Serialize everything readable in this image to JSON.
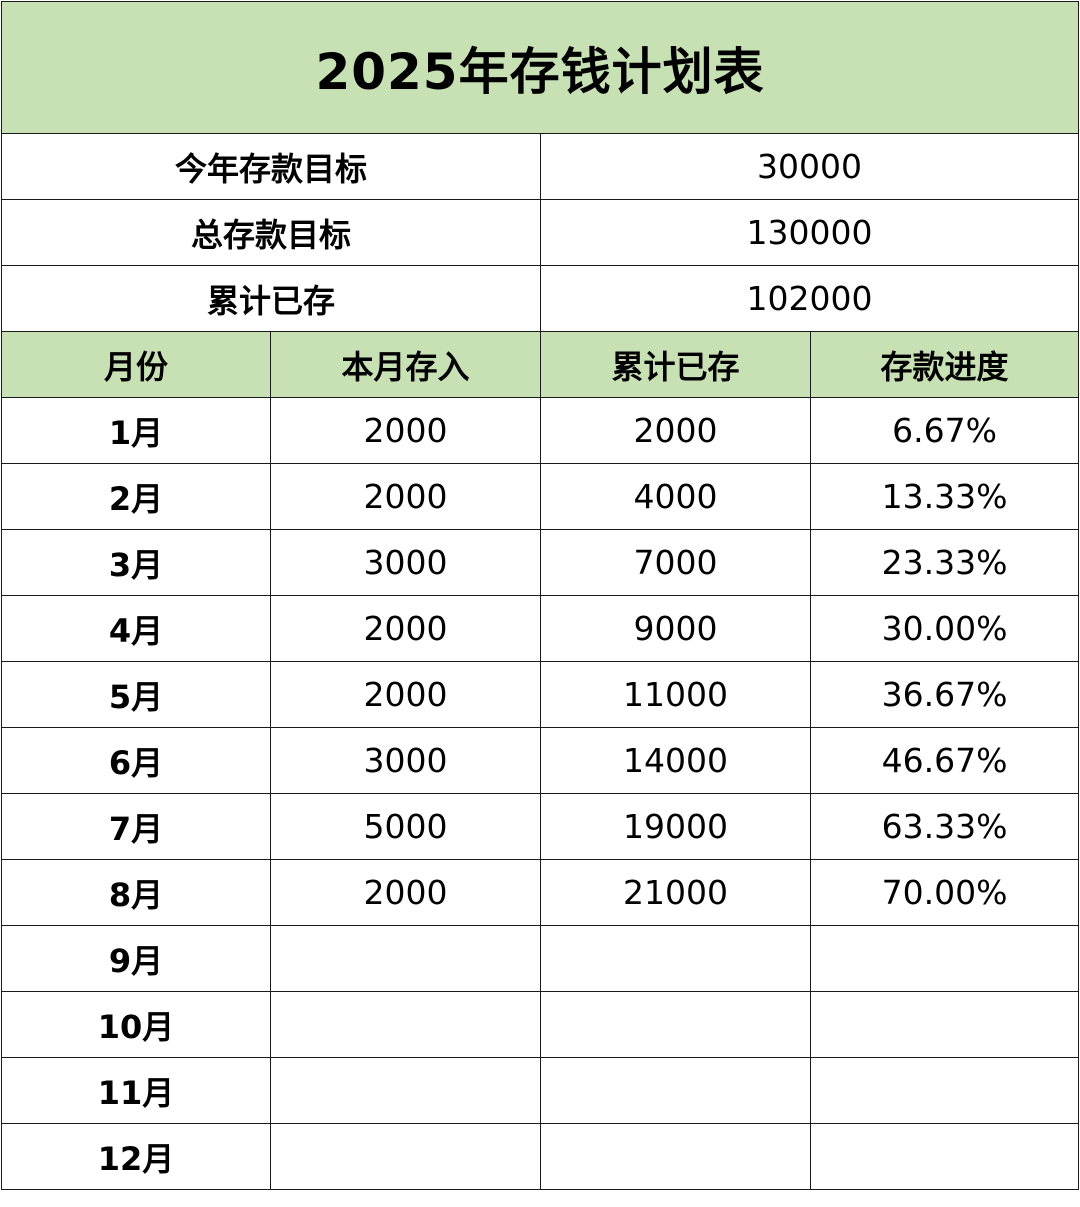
{
  "colors": {
    "header_fill": "#c7e1b5",
    "border": "#1a1a1a",
    "text": "#000000",
    "background": "#ffffff"
  },
  "title": "2025年存钱计划表",
  "summary": [
    {
      "label": "今年存款目标",
      "value": "30000"
    },
    {
      "label": "总存款目标",
      "value": "130000"
    },
    {
      "label": "累计已存",
      "value": "102000"
    }
  ],
  "columns": [
    "月份",
    "本月存入",
    "累计已存",
    "存款进度"
  ],
  "rows": [
    {
      "month": "1月",
      "deposit": "2000",
      "cumulative": "2000",
      "progress": "6.67%"
    },
    {
      "month": "2月",
      "deposit": "2000",
      "cumulative": "4000",
      "progress": "13.33%"
    },
    {
      "month": "3月",
      "deposit": "3000",
      "cumulative": "7000",
      "progress": "23.33%"
    },
    {
      "month": "4月",
      "deposit": "2000",
      "cumulative": "9000",
      "progress": "30.00%"
    },
    {
      "month": "5月",
      "deposit": "2000",
      "cumulative": "11000",
      "progress": "36.67%"
    },
    {
      "month": "6月",
      "deposit": "3000",
      "cumulative": "14000",
      "progress": "46.67%"
    },
    {
      "month": "7月",
      "deposit": "5000",
      "cumulative": "19000",
      "progress": "63.33%"
    },
    {
      "month": "8月",
      "deposit": "2000",
      "cumulative": "21000",
      "progress": "70.00%"
    },
    {
      "month": "9月",
      "deposit": "",
      "cumulative": "",
      "progress": ""
    },
    {
      "month": "10月",
      "deposit": "",
      "cumulative": "",
      "progress": ""
    },
    {
      "month": "11月",
      "deposit": "",
      "cumulative": "",
      "progress": ""
    },
    {
      "month": "12月",
      "deposit": "",
      "cumulative": "",
      "progress": ""
    }
  ]
}
